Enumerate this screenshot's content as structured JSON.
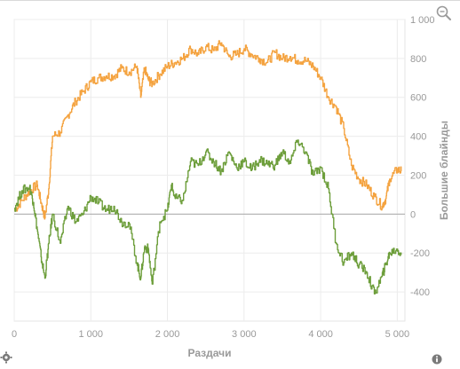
{
  "chart_data": {
    "type": "line",
    "xlabel": "Раздачи",
    "ylabel": "Большие блайнды",
    "xlim": [
      0,
      5100
    ],
    "ylim": [
      -550,
      1000
    ],
    "x_ticks": [
      0,
      1000,
      2000,
      3000,
      4000,
      5000
    ],
    "x_tick_labels": [
      "0",
      "1 000",
      "2 000",
      "3 000",
      "4 000",
      "5 000"
    ],
    "y_ticks": [
      -400,
      -200,
      0,
      200,
      400,
      600,
      800,
      1000
    ],
    "y_tick_labels": [
      "-400",
      "-200",
      "0",
      "200",
      "400",
      "600",
      "800",
      "1 000"
    ],
    "grid": true,
    "zero_line": true,
    "series": [
      {
        "color": "#f4a340",
        "x": [
          0,
          100,
          200,
          300,
          350,
          400,
          450,
          500,
          600,
          700,
          800,
          900,
          1000,
          1100,
          1200,
          1300,
          1400,
          1500,
          1600,
          1650,
          1700,
          1750,
          1800,
          1900,
          2000,
          2100,
          2200,
          2300,
          2400,
          2500,
          2600,
          2700,
          2800,
          2900,
          3000,
          3100,
          3200,
          3300,
          3400,
          3500,
          3600,
          3700,
          3800,
          3900,
          4000,
          4100,
          4200,
          4300,
          4400,
          4500,
          4600,
          4700,
          4800,
          4850,
          4900,
          5000,
          5050
        ],
        "y": [
          20,
          70,
          120,
          150,
          60,
          -20,
          130,
          400,
          420,
          510,
          580,
          630,
          680,
          700,
          710,
          710,
          750,
          730,
          760,
          600,
          750,
          690,
          670,
          720,
          760,
          780,
          800,
          850,
          820,
          860,
          840,
          880,
          810,
          820,
          850,
          820,
          800,
          780,
          830,
          800,
          810,
          790,
          790,
          760,
          700,
          600,
          550,
          440,
          250,
          180,
          150,
          90,
          40,
          80,
          180,
          230,
          220
        ]
      },
      {
        "color": "#6d9e3b",
        "x": [
          0,
          100,
          200,
          250,
          300,
          350,
          400,
          450,
          500,
          600,
          700,
          800,
          900,
          1000,
          1100,
          1200,
          1300,
          1400,
          1500,
          1600,
          1650,
          1700,
          1750,
          1800,
          1900,
          2000,
          2050,
          2100,
          2200,
          2300,
          2400,
          2500,
          2600,
          2700,
          2800,
          2900,
          3000,
          3100,
          3200,
          3300,
          3400,
          3500,
          3600,
          3700,
          3800,
          3900,
          4000,
          4100,
          4200,
          4300,
          4400,
          4500,
          4600,
          4700,
          4800,
          4850,
          4900,
          5000,
          5050
        ],
        "y": [
          30,
          120,
          140,
          60,
          -80,
          -220,
          -330,
          -150,
          0,
          -150,
          40,
          -40,
          0,
          90,
          60,
          20,
          40,
          -40,
          -50,
          -250,
          -330,
          -170,
          -180,
          -360,
          -40,
          20,
          150,
          80,
          70,
          270,
          250,
          320,
          270,
          220,
          320,
          240,
          270,
          230,
          280,
          260,
          250,
          320,
          260,
          380,
          320,
          200,
          240,
          130,
          -150,
          -250,
          -200,
          -260,
          -300,
          -410,
          -320,
          -260,
          -200,
          -180,
          -210
        ]
      }
    ]
  },
  "icons": {
    "zoom": "zoom-icon",
    "settings": "gear-icon",
    "info": "info-icon"
  }
}
